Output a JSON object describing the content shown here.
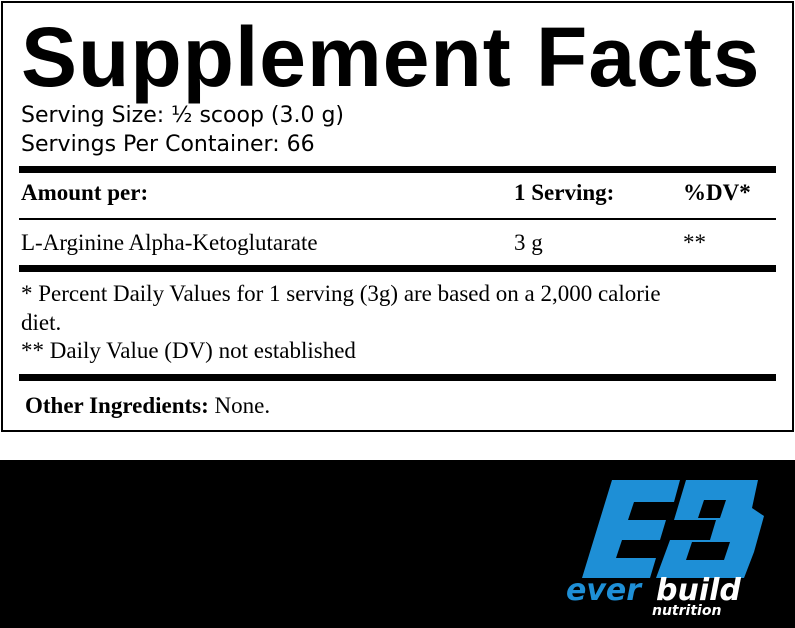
{
  "title": "Supplement Facts",
  "serving_size": "Serving Size: ½ scoop (3.0 g)",
  "servings_per_container": "Servings Per Container: 66",
  "table": {
    "headers": [
      "Amount per:",
      "1 Serving:",
      "%DV*"
    ],
    "rows": [
      [
        "L-Arginine Alpha-Ketoglutarate",
        "3 g",
        "**"
      ]
    ]
  },
  "footnotes": [
    "* Percent Daily Values for 1 serving (3g) are based on a 2,000 calorie",
    "diet.",
    "** Daily Value (DV) not established"
  ],
  "other_ingredients": {
    "label": "Other Ingredients:",
    "value": " None."
  },
  "logo": {
    "mark": "EB",
    "brand_part1": "ever",
    "brand_part2": "build",
    "sub": "nutrition",
    "color": "#1e8fd6"
  }
}
